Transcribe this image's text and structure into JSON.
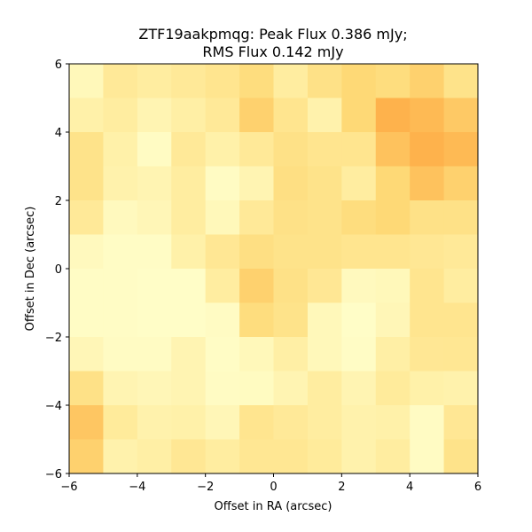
{
  "chart_data": {
    "type": "heatmap",
    "title_line1": "ZTF19aakpmqg: Peak Flux 0.386 mJy;",
    "title_line2": "RMS Flux 0.142 mJy",
    "xlabel": "Offset in RA (arcsec)",
    "ylabel": "Offset in Dec (arcsec)",
    "xlim": [
      -6,
      6
    ],
    "ylim": [
      -6,
      6
    ],
    "xticks": [
      -6,
      -4,
      -2,
      0,
      2,
      4,
      6
    ],
    "yticks": [
      -6,
      -4,
      -2,
      0,
      2,
      4,
      6
    ],
    "xtick_labels": [
      "−6",
      "−4",
      "−2",
      "0",
      "2",
      "4",
      "6"
    ],
    "ytick_labels": [
      "−6",
      "−4",
      "−2",
      "0",
      "2",
      "4",
      "6"
    ],
    "grid": false,
    "colormap": "YlOrRd-like",
    "x_bin_centers": [
      -5.5,
      -4.5,
      -3.5,
      -2.5,
      -1.5,
      -0.5,
      0.5,
      1.5,
      2.5,
      3.5,
      4.5,
      5.5
    ],
    "y_bin_centers": [
      5.5,
      4.5,
      3.5,
      2.5,
      1.5,
      0.5,
      -0.5,
      -1.5,
      -2.5,
      -3.5,
      -4.5,
      -5.5
    ],
    "z_note": "relative intensity 0-1, rows top to bottom",
    "z": [
      [
        0.1,
        0.3,
        0.25,
        0.3,
        0.35,
        0.45,
        0.25,
        0.4,
        0.5,
        0.45,
        0.55,
        0.38
      ],
      [
        0.2,
        0.25,
        0.15,
        0.22,
        0.3,
        0.55,
        0.35,
        0.18,
        0.5,
        0.75,
        0.7,
        0.6
      ],
      [
        0.38,
        0.2,
        0.05,
        0.3,
        0.2,
        0.3,
        0.4,
        0.35,
        0.35,
        0.65,
        0.75,
        0.7
      ],
      [
        0.38,
        0.18,
        0.15,
        0.25,
        0.05,
        0.15,
        0.42,
        0.38,
        0.25,
        0.5,
        0.65,
        0.55
      ],
      [
        0.3,
        0.08,
        0.12,
        0.25,
        0.1,
        0.3,
        0.4,
        0.38,
        0.45,
        0.5,
        0.4,
        0.4
      ],
      [
        0.08,
        0.04,
        0.04,
        0.2,
        0.32,
        0.42,
        0.38,
        0.38,
        0.35,
        0.35,
        0.32,
        0.3
      ],
      [
        0.04,
        0.04,
        0.03,
        0.03,
        0.25,
        0.55,
        0.4,
        0.32,
        0.08,
        0.1,
        0.35,
        0.25
      ],
      [
        0.04,
        0.04,
        0.03,
        0.03,
        0.05,
        0.45,
        0.38,
        0.1,
        0.03,
        0.12,
        0.35,
        0.35
      ],
      [
        0.12,
        0.05,
        0.05,
        0.15,
        0.04,
        0.1,
        0.22,
        0.1,
        0.04,
        0.22,
        0.32,
        0.33
      ],
      [
        0.4,
        0.15,
        0.12,
        0.15,
        0.05,
        0.06,
        0.15,
        0.25,
        0.15,
        0.28,
        0.2,
        0.18
      ],
      [
        0.62,
        0.28,
        0.18,
        0.2,
        0.12,
        0.35,
        0.3,
        0.25,
        0.18,
        0.2,
        0.05,
        0.32
      ],
      [
        0.55,
        0.18,
        0.22,
        0.32,
        0.25,
        0.33,
        0.33,
        0.28,
        0.18,
        0.25,
        0.05,
        0.38
      ]
    ]
  }
}
